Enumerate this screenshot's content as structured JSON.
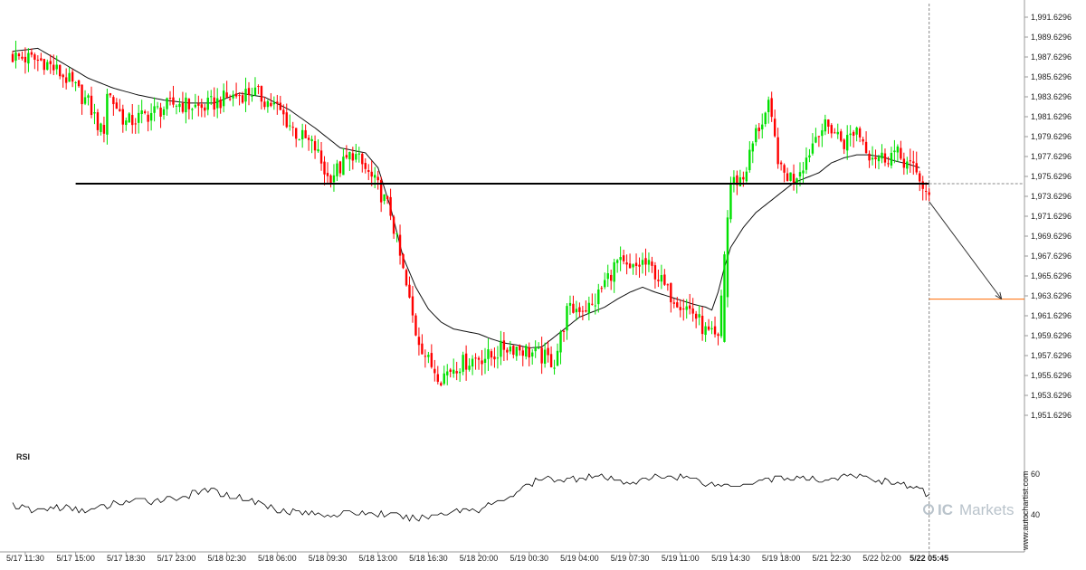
{
  "watermark": {
    "prefix": "IC",
    "suffix": "Markets"
  },
  "credit": "www.autochartist.com",
  "colors": {
    "up": "#00e000",
    "down": "#ff0000",
    "ma": "#111111",
    "level": "#000000",
    "target": "#ff6a00",
    "rsi": "#000000"
  },
  "chart_data": [
    {
      "type": "candlestick",
      "ylim": [
        1950.6296,
        1992.6296
      ],
      "y_ticks": [
        "1,991.6296",
        "1,989.6296",
        "1,987.6296",
        "1,985.6296",
        "1,983.6296",
        "1,981.6296",
        "1,979.6296",
        "1,977.6296",
        "1,975.6296",
        "1,973.6296",
        "1,971.6296",
        "1,969.6296",
        "1,967.6296",
        "1,965.6296",
        "1,963.6296",
        "1,961.6296",
        "1,959.6296",
        "1,957.6296",
        "1,955.6296",
        "1,953.6296",
        "1,951.6296"
      ],
      "y_tick_values": [
        1991.6296,
        1989.6296,
        1987.6296,
        1985.6296,
        1983.6296,
        1981.6296,
        1979.6296,
        1977.6296,
        1975.6296,
        1973.6296,
        1971.6296,
        1969.6296,
        1967.6296,
        1965.6296,
        1963.6296,
        1961.6296,
        1959.6296,
        1957.6296,
        1955.6296,
        1953.6296,
        1951.6296
      ],
      "x_ticks": [
        "5/17 11:30",
        "5/17 15:00",
        "5/17 18:30",
        "5/17 23:00",
        "5/18 02:30",
        "5/18 06:00",
        "5/18 09:30",
        "5/18 13:00",
        "5/18 16:30",
        "5/18 20:00",
        "5/19 00:30",
        "5/19 04:00",
        "5/19 07:30",
        "5/19 11:00",
        "5/19 14:30",
        "5/19 18:00",
        "5/21 22:30",
        "5/22 02:00",
        "5/22 05:45"
      ],
      "x_tick_bars": [
        4,
        20,
        36,
        52,
        68,
        84,
        100,
        116,
        132,
        148,
        164,
        180,
        196,
        212,
        228,
        244,
        260,
        276,
        291
      ],
      "highlighted_x_tick": "5/22 05:45",
      "bar_count": 292,
      "close_anchors": [
        [
          0,
          1987.7
        ],
        [
          10,
          1987.2
        ],
        [
          17,
          1985.5
        ],
        [
          24,
          1983.0
        ],
        [
          28,
          1980.2
        ],
        [
          29,
          1980.5
        ],
        [
          30,
          1984.2
        ],
        [
          36,
          1981.0
        ],
        [
          44,
          1982.0
        ],
        [
          52,
          1983.0
        ],
        [
          60,
          1982.5
        ],
        [
          68,
          1983.5
        ],
        [
          76,
          1984.2
        ],
        [
          84,
          1982.5
        ],
        [
          90,
          1980.0
        ],
        [
          96,
          1978.5
        ],
        [
          100,
          1975.5
        ],
        [
          104,
          1976.5
        ],
        [
          108,
          1978.0
        ],
        [
          112,
          1976.3
        ],
        [
          116,
          1974.5
        ],
        [
          120,
          1972.0
        ],
        [
          124,
          1966.0
        ],
        [
          128,
          1960.0
        ],
        [
          132,
          1957.0
        ],
        [
          136,
          1955.5
        ],
        [
          140,
          1956.5
        ],
        [
          144,
          1957.0
        ],
        [
          148,
          1957.5
        ],
        [
          152,
          1957.5
        ],
        [
          156,
          1958.5
        ],
        [
          160,
          1958.5
        ],
        [
          164,
          1958.0
        ],
        [
          168,
          1957.5
        ],
        [
          172,
          1957.0
        ],
        [
          176,
          1962.0
        ],
        [
          180,
          1962.5
        ],
        [
          184,
          1962.5
        ],
        [
          188,
          1965.0
        ],
        [
          192,
          1967.0
        ],
        [
          196,
          1966.0
        ],
        [
          200,
          1967.0
        ],
        [
          204,
          1966.0
        ],
        [
          208,
          1964.0
        ],
        [
          212,
          1963.0
        ],
        [
          216,
          1962.0
        ],
        [
          220,
          1960.0
        ],
        [
          224,
          1959.0
        ],
        [
          226,
          1968.0
        ],
        [
          228,
          1975.0
        ],
        [
          232,
          1975.5
        ],
        [
          236,
          1980.0
        ],
        [
          240,
          1982.5
        ],
        [
          244,
          1976.0
        ],
        [
          248,
          1975.5
        ],
        [
          252,
          1977.5
        ],
        [
          256,
          1980.5
        ],
        [
          260,
          1980.5
        ],
        [
          264,
          1979.0
        ],
        [
          268,
          1980.5
        ],
        [
          272,
          1978.0
        ],
        [
          276,
          1977.5
        ],
        [
          280,
          1978.0
        ],
        [
          284,
          1977.0
        ],
        [
          288,
          1975.5
        ],
        [
          291,
          1973.1
        ]
      ],
      "ma_anchors": [
        [
          0,
          1988.2
        ],
        [
          8,
          1988.5
        ],
        [
          16,
          1987.0
        ],
        [
          24,
          1985.5
        ],
        [
          32,
          1984.5
        ],
        [
          40,
          1983.8
        ],
        [
          48,
          1983.3
        ],
        [
          56,
          1983.0
        ],
        [
          64,
          1983.0
        ],
        [
          72,
          1984.0
        ],
        [
          80,
          1983.6
        ],
        [
          88,
          1982.3
        ],
        [
          96,
          1980.5
        ],
        [
          104,
          1978.5
        ],
        [
          112,
          1978.0
        ],
        [
          116,
          1976.5
        ],
        [
          120,
          1972.5
        ],
        [
          124,
          1967.5
        ],
        [
          128,
          1964.5
        ],
        [
          132,
          1962.3
        ],
        [
          136,
          1961.0
        ],
        [
          140,
          1960.3
        ],
        [
          148,
          1959.8
        ],
        [
          152,
          1959.3
        ],
        [
          156,
          1958.9
        ],
        [
          160,
          1958.7
        ],
        [
          164,
          1958.4
        ],
        [
          168,
          1958.5
        ],
        [
          172,
          1959.5
        ],
        [
          176,
          1960.5
        ],
        [
          180,
          1961.5
        ],
        [
          184,
          1962.0
        ],
        [
          188,
          1962.5
        ],
        [
          192,
          1963.3
        ],
        [
          196,
          1964.0
        ],
        [
          200,
          1964.5
        ],
        [
          204,
          1964.0
        ],
        [
          208,
          1963.6
        ],
        [
          212,
          1963.2
        ],
        [
          216,
          1962.8
        ],
        [
          220,
          1962.5
        ],
        [
          222,
          1962.2
        ],
        [
          224,
          1964.0
        ],
        [
          226,
          1966.5
        ],
        [
          228,
          1968.5
        ],
        [
          232,
          1970.5
        ],
        [
          236,
          1972.0
        ],
        [
          240,
          1973.0
        ],
        [
          244,
          1974.0
        ],
        [
          248,
          1975.0
        ],
        [
          252,
          1975.5
        ],
        [
          256,
          1976.0
        ],
        [
          260,
          1977.0
        ],
        [
          264,
          1977.5
        ],
        [
          268,
          1977.8
        ],
        [
          272,
          1977.8
        ],
        [
          276,
          1977.6
        ],
        [
          280,
          1977.2
        ],
        [
          284,
          1976.9
        ],
        [
          288,
          1976.5
        ]
      ],
      "support_level": 1974.9,
      "support_start_bar": 20,
      "current_price": 1974.9,
      "target_level": 1963.3,
      "forecast_arrow": {
        "from_bar": 291,
        "from": 1973.1,
        "to_bar": 314,
        "to": 1963.3
      }
    },
    {
      "type": "line",
      "title": "RSI",
      "y_ticks": [
        "60",
        "40"
      ],
      "y_tick_values": [
        60,
        40
      ],
      "ylim": [
        25,
        75
      ],
      "anchors": [
        [
          0,
          45
        ],
        [
          6,
          42
        ],
        [
          14,
          44
        ],
        [
          24,
          42
        ],
        [
          34,
          46
        ],
        [
          44,
          47
        ],
        [
          54,
          49
        ],
        [
          62,
          52
        ],
        [
          68,
          50
        ],
        [
          76,
          47
        ],
        [
          84,
          43
        ],
        [
          92,
          41
        ],
        [
          100,
          40
        ],
        [
          110,
          41
        ],
        [
          120,
          40
        ],
        [
          126,
          38
        ],
        [
          132,
          39
        ],
        [
          140,
          42
        ],
        [
          148,
          43
        ],
        [
          154,
          46
        ],
        [
          160,
          51
        ],
        [
          164,
          55
        ],
        [
          170,
          58
        ],
        [
          176,
          57
        ],
        [
          182,
          59
        ],
        [
          188,
          58
        ],
        [
          194,
          56
        ],
        [
          200,
          57
        ],
        [
          206,
          59
        ],
        [
          212,
          59
        ],
        [
          220,
          56
        ],
        [
          228,
          54
        ],
        [
          234,
          56
        ],
        [
          240,
          58
        ],
        [
          248,
          58
        ],
        [
          256,
          57
        ],
        [
          262,
          58
        ],
        [
          268,
          59
        ],
        [
          274,
          57
        ],
        [
          280,
          56
        ],
        [
          286,
          53
        ],
        [
          291,
          50
        ]
      ]
    }
  ]
}
